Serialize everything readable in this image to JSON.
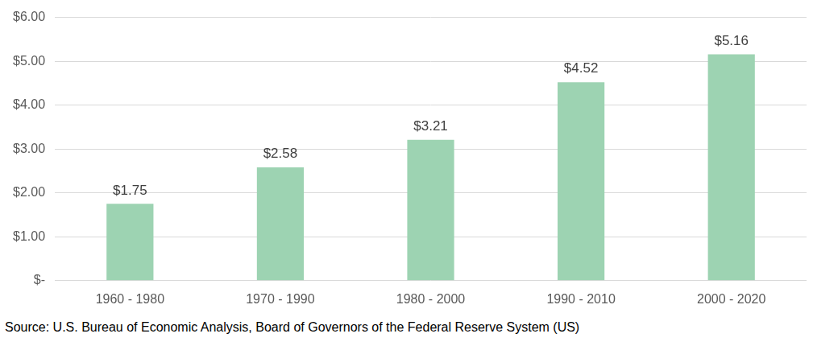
{
  "chart_data": {
    "type": "bar",
    "categories": [
      "1960 - 1980",
      "1970 - 1990",
      "1980 - 2000",
      "1990 - 2010",
      "2000 - 2020"
    ],
    "values": [
      1.75,
      2.58,
      3.21,
      4.52,
      5.16
    ],
    "value_labels": [
      "$1.75",
      "$2.58",
      "$3.21",
      "$4.52",
      "$5.16"
    ],
    "color": "#9dd3b2",
    "ylim": [
      0,
      6
    ],
    "yticks": [
      {
        "value": 0,
        "label": "$-"
      },
      {
        "value": 1,
        "label": "$1.00"
      },
      {
        "value": 2,
        "label": "$2.00"
      },
      {
        "value": 3,
        "label": "$3.00"
      },
      {
        "value": 4,
        "label": "$4.00"
      },
      {
        "value": 5,
        "label": "$5.00"
      },
      {
        "value": 6,
        "label": "$6.00"
      }
    ],
    "grid": true,
    "data_labels": true,
    "source": "Source: U.S. Bureau of Economic Analysis, Board of Governors of the Federal Reserve System (US)"
  }
}
